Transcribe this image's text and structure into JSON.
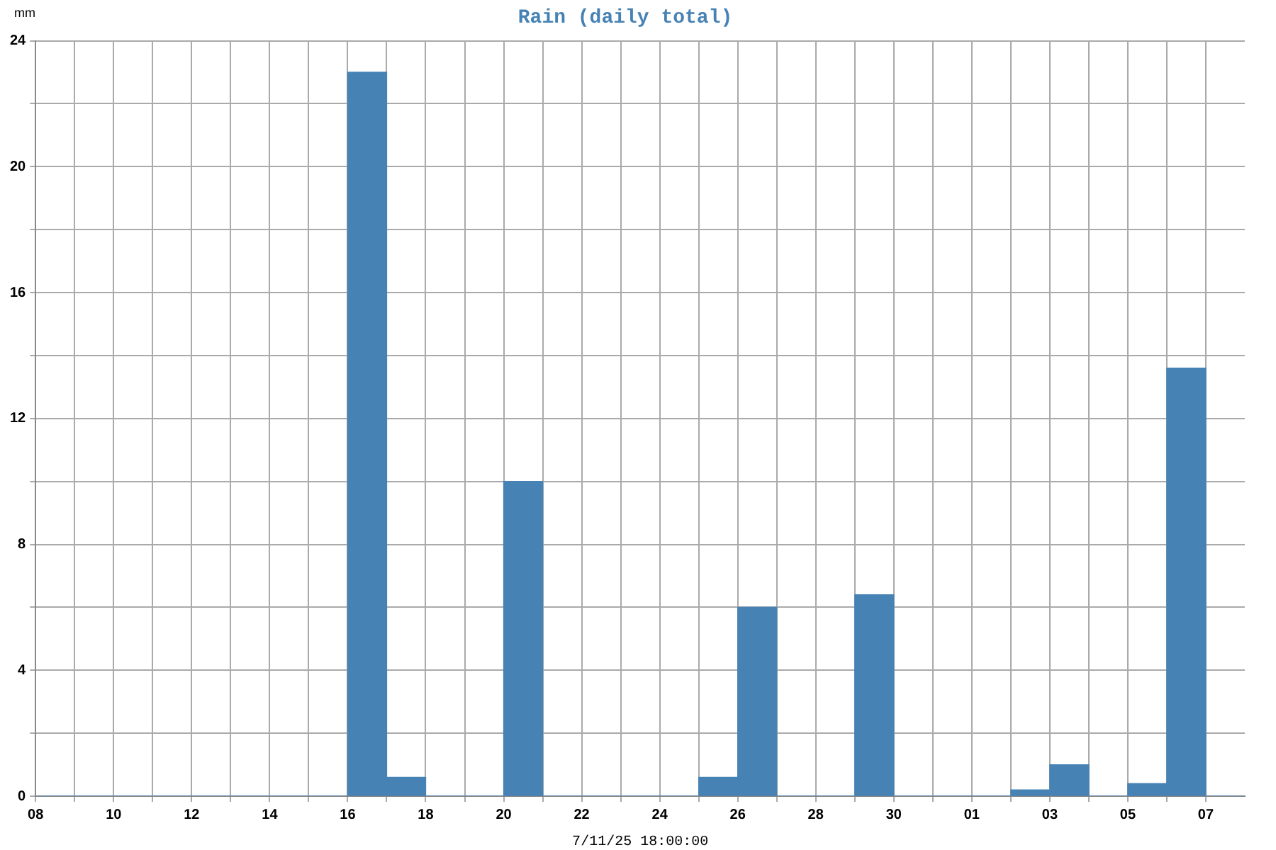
{
  "chart_data": {
    "type": "histogram",
    "title": "Rain (daily total)",
    "ylabel": "mm",
    "xlabel": "7/11/25 18:00:00",
    "bins": [
      "--05-08",
      "--05-09",
      "--05-10",
      "--05-11",
      "--05-12",
      "--05-13",
      "--05-14",
      "--05-15",
      "--05-16",
      "--05-17",
      "--05-18",
      "--05-19",
      "--05-20",
      "--05-21",
      "--05-22",
      "--05-23",
      "--05-24",
      "--05-25",
      "--05-26",
      "--05-27",
      "--05-28",
      "--05-29",
      "--05-30",
      "--05-31",
      "--06-01",
      "--06-02",
      "--06-03",
      "--06-04",
      "--06-05",
      "--06-06",
      "--06-07",
      "--06-08"
    ],
    "values": [
      0,
      0,
      0,
      0,
      0,
      0,
      0,
      0,
      23,
      0.6,
      0,
      0,
      10,
      0,
      0,
      0,
      0,
      0.6,
      6,
      0,
      0,
      6.4,
      0,
      0,
      0,
      0.2,
      1,
      0,
      0.4,
      13.6,
      0
    ],
    "color": "#4682b4",
    "xlim": [
      "--05-08",
      "--06-08"
    ],
    "xticks": [
      {
        "value": "--05-08",
        "label": "08"
      },
      {
        "value": "--05-09",
        "label": null
      },
      {
        "value": "--05-10",
        "label": "10"
      },
      {
        "value": "--05-11",
        "label": null
      },
      {
        "value": "--05-12",
        "label": "12"
      },
      {
        "value": "--05-13",
        "label": null
      },
      {
        "value": "--05-14",
        "label": "14"
      },
      {
        "value": "--05-15",
        "label": null
      },
      {
        "value": "--05-16",
        "label": "16"
      },
      {
        "value": "--05-17",
        "label": null
      },
      {
        "value": "--05-18",
        "label": "18"
      },
      {
        "value": "--05-19",
        "label": null
      },
      {
        "value": "--05-20",
        "label": "20"
      },
      {
        "value": "--05-21",
        "label": null
      },
      {
        "value": "--05-22",
        "label": "22"
      },
      {
        "value": "--05-23",
        "label": null
      },
      {
        "value": "--05-24",
        "label": "24"
      },
      {
        "value": "--05-25",
        "label": null
      },
      {
        "value": "--05-26",
        "label": "26"
      },
      {
        "value": "--05-27",
        "label": null
      },
      {
        "value": "--05-28",
        "label": "28"
      },
      {
        "value": "--05-29",
        "label": null
      },
      {
        "value": "--05-30",
        "label": "30"
      },
      {
        "value": "--05-31",
        "label": null
      },
      {
        "value": "--06-01",
        "label": "01"
      },
      {
        "value": "--06-02",
        "label": null
      },
      {
        "value": "--06-03",
        "label": "03"
      },
      {
        "value": "--06-04",
        "label": null
      },
      {
        "value": "--06-05",
        "label": "05"
      },
      {
        "value": "--06-06",
        "label": null
      },
      {
        "value": "--06-07",
        "label": "07"
      }
    ],
    "ylim": [
      0,
      24
    ],
    "yticks": [
      0,
      {
        "value": 2,
        "label": null
      },
      4,
      {
        "value": 6,
        "label": null
      },
      8,
      {
        "value": 10,
        "label": null
      },
      12,
      {
        "value": 14,
        "label": null
      },
      16,
      {
        "value": 18,
        "label": null
      },
      20,
      {
        "value": 22,
        "label": null
      },
      24
    ],
    "grid": true
  }
}
